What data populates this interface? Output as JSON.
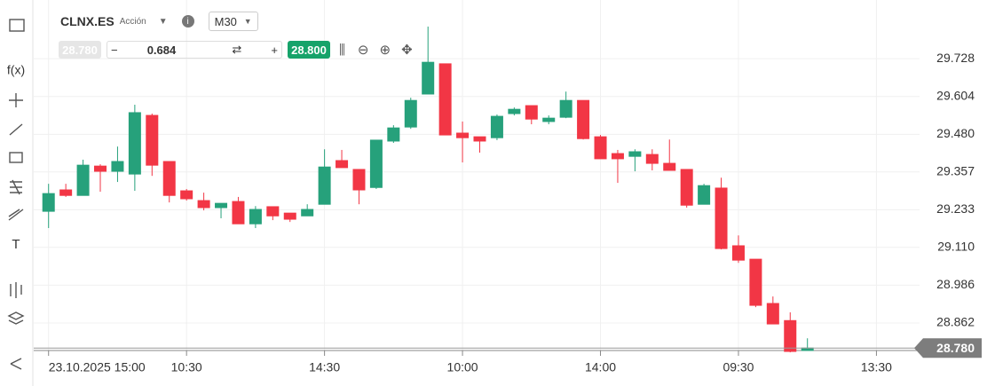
{
  "toolbar": {
    "symbol": "CLNX.ES",
    "instrument_type": "Acción",
    "timeframe": "M30",
    "sell_price": "28.780",
    "volume": "0.684",
    "buy_price": "28.800"
  },
  "sidebar": {
    "indicators": "f(x)",
    "text_tool": "T"
  },
  "chart_data": {
    "type": "candlestick",
    "categories": [
      "23.10.2025 15:00",
      null,
      null,
      null,
      null,
      null,
      null,
      null,
      "10:30",
      null,
      null,
      null,
      null,
      null,
      null,
      null,
      "14:30",
      null,
      null,
      null,
      null,
      null,
      null,
      null,
      "10:00",
      null,
      null,
      null,
      null,
      null,
      null,
      null,
      "14:00",
      null,
      null,
      null,
      null,
      null,
      null,
      null,
      "09:30",
      null,
      null,
      null,
      null,
      null,
      null,
      null,
      "13:30",
      null,
      null
    ],
    "open": [
      29.228,
      29.298,
      29.28,
      29.376,
      29.359,
      29.35,
      29.542,
      29.391,
      29.295,
      29.263,
      29.24,
      29.26,
      29.187,
      29.243,
      29.222,
      29.213,
      29.251,
      29.394,
      29.365,
      29.306,
      29.458,
      29.504,
      29.612,
      29.711,
      29.484,
      29.472,
      29.469,
      29.548,
      29.574,
      29.522,
      29.536,
      29.591,
      29.472,
      29.417,
      29.408,
      29.414,
      29.385,
      29.365,
      29.251,
      29.304,
      29.115,
      29.071,
      28.926,
      28.87,
      28.772,
      null,
      null,
      null,
      null,
      null,
      null
    ],
    "high": [
      29.318,
      29.318,
      29.397,
      29.382,
      29.44,
      29.577,
      29.548,
      29.391,
      29.301,
      29.289,
      29.254,
      29.275,
      29.245,
      29.243,
      29.222,
      29.251,
      29.431,
      29.429,
      29.365,
      29.461,
      29.51,
      29.6,
      29.833,
      29.711,
      29.522,
      29.472,
      29.545,
      29.568,
      29.574,
      29.542,
      29.62,
      29.591,
      29.478,
      29.429,
      29.431,
      29.431,
      29.463,
      29.365,
      29.318,
      29.338,
      29.149,
      29.071,
      28.949,
      28.897,
      28.812,
      null,
      null,
      null,
      null,
      null,
      null
    ],
    "low": [
      29.173,
      29.275,
      29.28,
      29.292,
      29.324,
      29.295,
      29.344,
      29.257,
      29.263,
      29.231,
      29.205,
      29.187,
      29.173,
      29.199,
      29.193,
      29.213,
      29.251,
      29.371,
      29.251,
      29.301,
      29.452,
      29.498,
      29.612,
      29.478,
      29.388,
      29.42,
      29.461,
      29.542,
      29.513,
      29.513,
      29.533,
      29.463,
      29.4,
      29.321,
      29.359,
      29.362,
      29.362,
      29.24,
      29.251,
      29.103,
      29.059,
      28.914,
      28.859,
      28.766,
      28.772,
      null,
      null,
      null,
      null,
      null,
      null
    ],
    "close": [
      29.286,
      29.28,
      29.379,
      29.359,
      29.391,
      29.551,
      29.379,
      29.28,
      29.269,
      29.24,
      29.254,
      29.187,
      29.234,
      29.213,
      29.202,
      29.234,
      29.373,
      29.371,
      29.298,
      29.461,
      29.501,
      29.591,
      29.716,
      29.478,
      29.469,
      29.458,
      29.539,
      29.562,
      29.53,
      29.533,
      29.591,
      29.466,
      29.4,
      29.4,
      29.423,
      29.385,
      29.362,
      29.248,
      29.312,
      29.106,
      29.068,
      28.92,
      28.859,
      28.769,
      28.78,
      null,
      null,
      null,
      null,
      null,
      null
    ],
    "up_color": "#26a17b",
    "down_color": "#f23645",
    "ylim": [
      28.772,
      29.92
    ],
    "yticks": [
      28.862,
      28.986,
      {
        "value": 29.11,
        "label": "29.110"
      },
      29.233,
      29.357,
      {
        "value": 29.48,
        "label": "29.480"
      },
      29.604,
      29.728
    ],
    "last_price": {
      "value": 28.78,
      "label": "28.780"
    },
    "grid": true
  }
}
